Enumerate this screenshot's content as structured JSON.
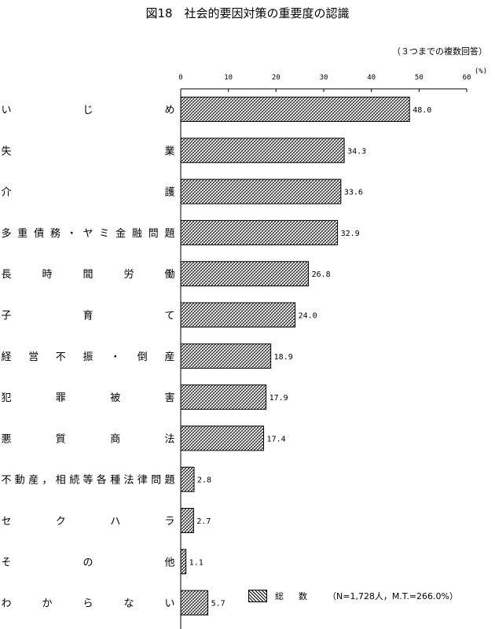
{
  "chart_data": {
    "type": "bar",
    "orientation": "horizontal",
    "title": "図18　社会的要因対策の重要度の認識",
    "note": "（３つまでの複数回答）",
    "unit": "(%)",
    "xlim": [
      0,
      60
    ],
    "ticks": [
      0,
      10,
      20,
      30,
      40,
      50,
      60
    ],
    "grid": false,
    "legend_position": "bottom-right",
    "bar_pattern": "crosshatch",
    "categories": [
      "いじめ",
      "失業",
      "介護",
      "多重債務・ヤミ金融問題",
      "長時間労働",
      "子育て",
      "経営不振・倒産",
      "犯罪被害",
      "悪質商法",
      "不動産，相続等各種法律問題",
      "セクハラ",
      "その他",
      "わからない"
    ],
    "values": [
      48.0,
      34.3,
      33.6,
      32.9,
      26.8,
      24.0,
      18.9,
      17.9,
      17.4,
      2.8,
      2.7,
      1.1,
      5.7
    ],
    "value_labels": [
      "48.0",
      "34.3",
      "33.6",
      "32.9",
      "26.8",
      "24.0",
      "18.9",
      "17.9",
      "17.4",
      "2.8",
      "2.7",
      "1.1",
      "5.7"
    ],
    "series": [
      {
        "name": "総　数",
        "values": [
          48.0,
          34.3,
          33.6,
          32.9,
          26.8,
          24.0,
          18.9,
          17.9,
          17.4,
          2.8,
          2.7,
          1.1,
          5.7
        ]
      }
    ],
    "legend_note": "（N=1,728人，M.T.=266.0%）"
  }
}
